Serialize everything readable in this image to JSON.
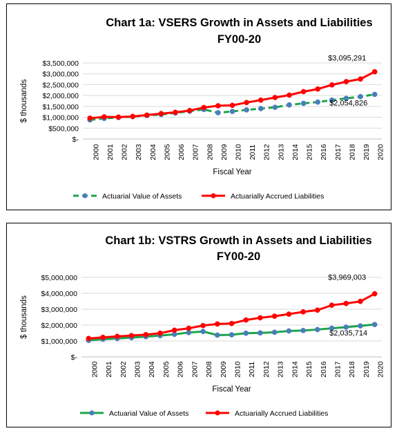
{
  "chart_data": [
    {
      "type": "line",
      "title": "Chart 1a: VSERS Growth in Assets and Liabilities",
      "subtitle": "FY00-20",
      "xlabel": "Fiscal Year",
      "ylabel": "$ thousands",
      "categories": [
        "2000",
        "2001",
        "2002",
        "2003",
        "2004",
        "2005",
        "2006",
        "2007",
        "2008",
        "2009",
        "2010",
        "2011",
        "2012",
        "2013",
        "2014",
        "2015",
        "2016",
        "2017",
        "2018",
        "2019",
        "2020"
      ],
      "ylim": [
        0,
        3500000
      ],
      "yticks": [
        "$-",
        "$500,000",
        "$1,000,000",
        "$1,500,000",
        "$2,000,000",
        "$2,500,000",
        "$3,000,000",
        "$3,500,000"
      ],
      "grid": true,
      "legend_position": "bottom",
      "series": [
        {
          "name": "Actuarial Value of Assets",
          "color": "#1aa548",
          "marker_color": "#4a7ebb",
          "dashed": true,
          "values": [
            880000,
            950000,
            990000,
            1030000,
            1080000,
            1130000,
            1200000,
            1280000,
            1360000,
            1210000,
            1270000,
            1340000,
            1400000,
            1460000,
            1570000,
            1640000,
            1700000,
            1790000,
            1870000,
            1950000,
            2054826
          ]
        },
        {
          "name": "Actuarially Accrued Liabilities",
          "color": "#ff0000",
          "marker_color": "#ff0000",
          "dashed": false,
          "values": [
            960000,
            1020000,
            1010000,
            1040000,
            1100000,
            1170000,
            1230000,
            1310000,
            1450000,
            1530000,
            1550000,
            1680000,
            1790000,
            1910000,
            2020000,
            2180000,
            2300000,
            2490000,
            2640000,
            2760000,
            3095291
          ]
        }
      ],
      "annotations": [
        {
          "series": 1,
          "index": 20,
          "text": "$3,095,291"
        },
        {
          "series": 0,
          "index": 20,
          "text": "$2,054,826"
        }
      ]
    },
    {
      "type": "line",
      "title": "Chart 1b: VSTRS Growth in Assets and Liabilities",
      "subtitle": "FY00-20",
      "xlabel": "Fiscal Year",
      "ylabel": "$ thousands",
      "categories": [
        "2000",
        "2001",
        "2002",
        "2003",
        "2004",
        "2005",
        "2006",
        "2007",
        "2008",
        "2009",
        "2010",
        "2011",
        "2012",
        "2013",
        "2014",
        "2015",
        "2016",
        "2017",
        "2018",
        "2019",
        "2020"
      ],
      "ylim": [
        0,
        5000000
      ],
      "yticks": [
        "$-",
        "$1,000,000",
        "$2,000,000",
        "$3,000,000",
        "$4,000,000",
        "$5,000,000"
      ],
      "grid": true,
      "legend_position": "bottom",
      "series": [
        {
          "name": "Actuarial Value of Assets",
          "color": "#1aa548",
          "marker_color": "#4a7ebb",
          "dashed": false,
          "values": [
            1040000,
            1110000,
            1160000,
            1210000,
            1270000,
            1340000,
            1420000,
            1530000,
            1600000,
            1370000,
            1390000,
            1490000,
            1510000,
            1550000,
            1630000,
            1660000,
            1720000,
            1800000,
            1870000,
            1950000,
            2035714
          ]
        },
        {
          "name": "Actuarially Accrued Liabilities",
          "color": "#ff0000",
          "marker_color": "#ff0000",
          "dashed": false,
          "values": [
            1160000,
            1230000,
            1290000,
            1340000,
            1400000,
            1490000,
            1680000,
            1800000,
            1970000,
            2070000,
            2100000,
            2320000,
            2460000,
            2560000,
            2690000,
            2830000,
            2940000,
            3250000,
            3360000,
            3490000,
            3969003
          ]
        }
      ],
      "annotations": [
        {
          "series": 1,
          "index": 20,
          "text": "$3,969,003"
        },
        {
          "series": 0,
          "index": 20,
          "text": "$2,035,714"
        }
      ]
    }
  ]
}
